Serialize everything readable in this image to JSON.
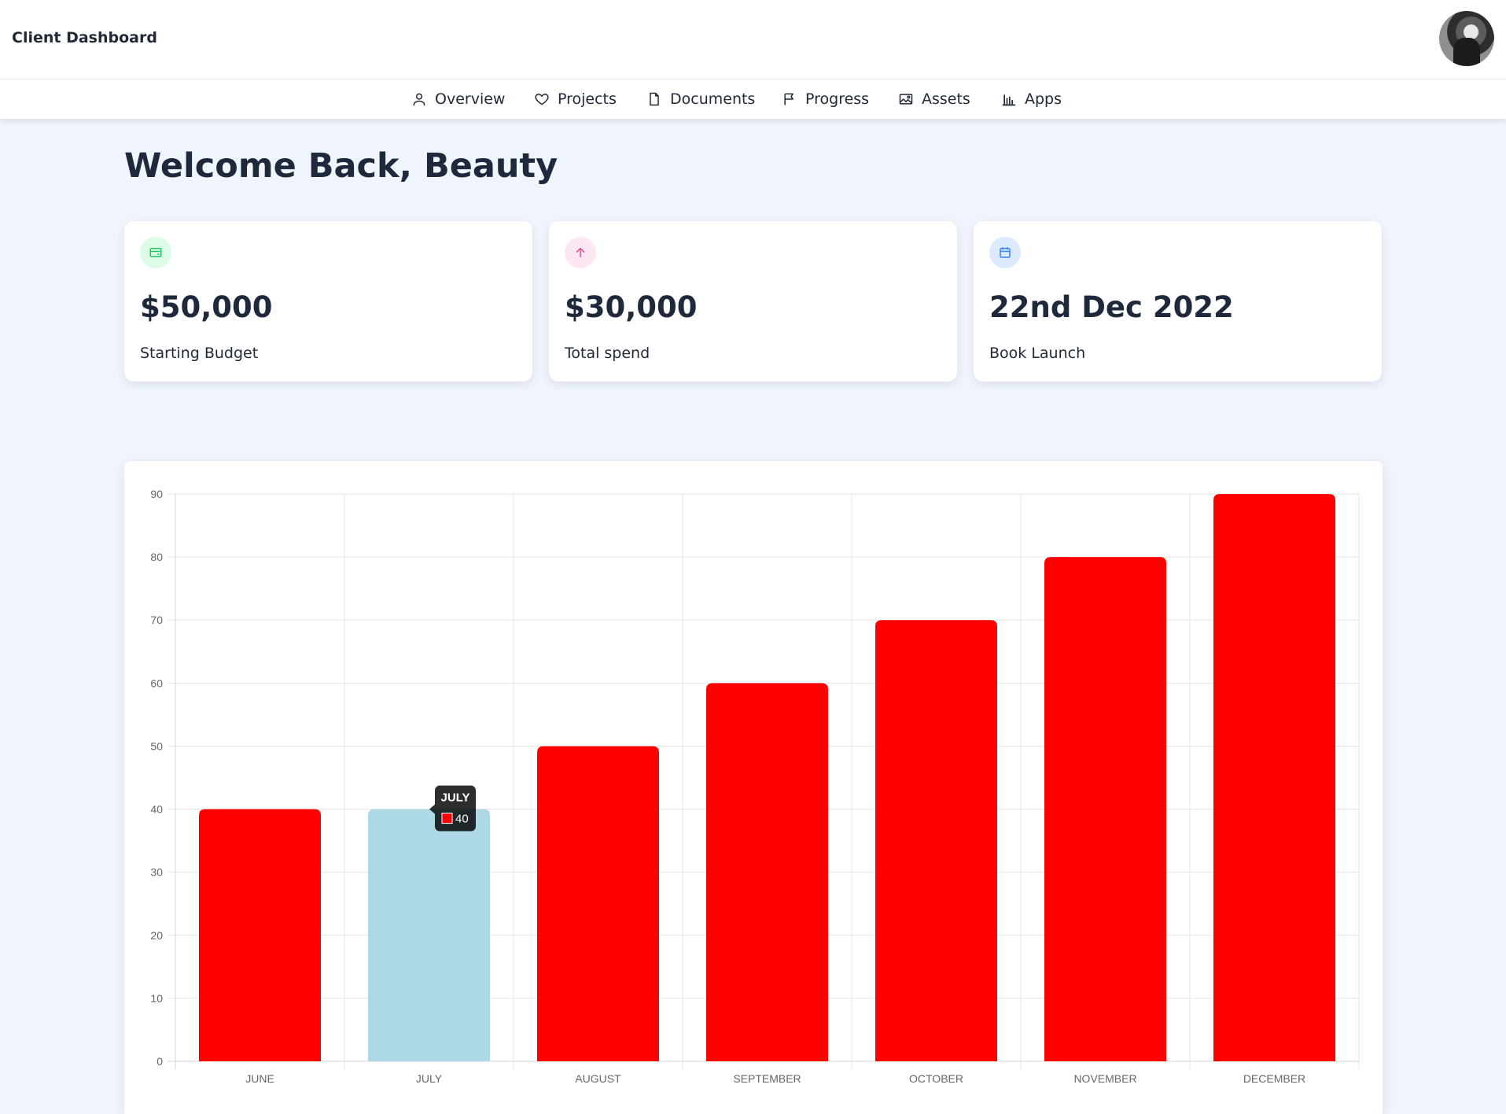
{
  "header": {
    "title": "Client Dashboard"
  },
  "nav": {
    "items": [
      {
        "label": "Overview",
        "icon": "user-icon"
      },
      {
        "label": "Projects",
        "icon": "heart-icon"
      },
      {
        "label": "Documents",
        "icon": "document-icon"
      },
      {
        "label": "Progress",
        "icon": "flag-icon"
      },
      {
        "label": "Assets",
        "icon": "image-icon"
      },
      {
        "label": "Apps",
        "icon": "bar-chart-icon"
      }
    ]
  },
  "main": {
    "welcome": "Welcome Back, Beauty"
  },
  "cards": [
    {
      "value": "$50,000",
      "label": "Starting Budget",
      "icon": "credit-card-icon",
      "icon_color": "#22c55e",
      "icon_bg": "#dcfce7"
    },
    {
      "value": "$30,000",
      "label": "Total spend",
      "icon": "arrow-up-icon",
      "icon_color": "#ec4899",
      "icon_bg": "#fce7f3"
    },
    {
      "value": "22nd Dec 2022",
      "label": "Book Launch",
      "icon": "calendar-icon",
      "icon_color": "#3b82f6",
      "icon_bg": "#dbeafe"
    }
  ],
  "chart_data": {
    "type": "bar",
    "categories": [
      "JUNE",
      "JULY",
      "AUGUST",
      "SEPTEMBER",
      "OCTOBER",
      "NOVEMBER",
      "DECEMBER"
    ],
    "values": [
      40,
      40,
      50,
      60,
      70,
      80,
      90
    ],
    "ylim": [
      0,
      90
    ],
    "y_ticks": [
      0,
      10,
      20,
      30,
      40,
      50,
      60,
      70,
      80,
      90
    ],
    "grid": true,
    "bar_color": "#ff0000",
    "hover_color": "#add8e6",
    "hovered_index": 1,
    "tooltip": {
      "title": "JULY",
      "value": "40",
      "swatch_color": "#ff0000"
    }
  }
}
